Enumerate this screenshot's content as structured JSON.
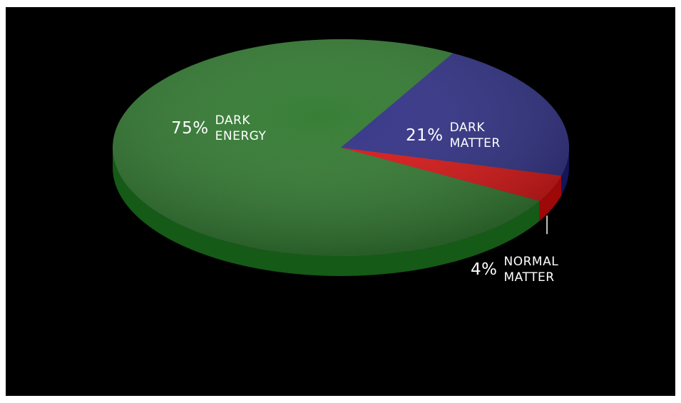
{
  "chart_data": {
    "type": "pie",
    "style": "3d",
    "title": "",
    "background": "#000000",
    "slices": [
      {
        "label": "DARK ENERGY",
        "label_lines": [
          "DARK",
          "ENERGY"
        ],
        "percent_label": "75%",
        "value": 75,
        "color": "#2e7b2c",
        "side_color": "#155a17"
      },
      {
        "label": "DARK MATTER",
        "label_lines": [
          "DARK",
          "MATTER"
        ],
        "percent_label": "21%",
        "value": 21,
        "color": "#2c2c8a",
        "side_color": "#14145a"
      },
      {
        "label": "NORMAL MATTER",
        "label_lines": [
          "NORMAL",
          "MATTER"
        ],
        "percent_label": "4%",
        "value": 4,
        "color": "#e31010",
        "side_color": "#9d0808"
      }
    ]
  }
}
